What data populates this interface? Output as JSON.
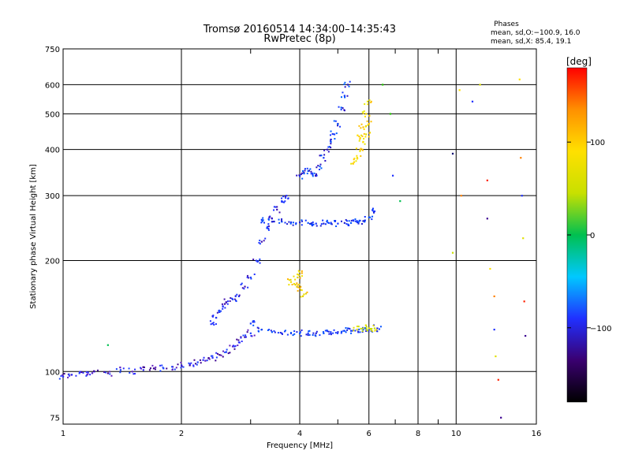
{
  "chart_data": {
    "type": "scatter",
    "title": "Tromsø 20160514 14:34:00–14:35:43",
    "subtitle": "RwPretec (8p)",
    "xlabel": "Frequency [MHz]",
    "ylabel": "Stationary phase Virtual Height [km]",
    "x_scale": "log",
    "y_scale": "log",
    "xlim": [
      1,
      16
    ],
    "ylim": [
      72,
      750
    ],
    "x_ticks": [
      1,
      2,
      4,
      6,
      8,
      10,
      16
    ],
    "y_ticks": [
      75,
      100,
      200,
      300,
      400,
      500,
      600,
      750
    ],
    "grid": true,
    "info": {
      "header": "Phases",
      "line1": "mean, sd,O:−100.9, 16.0",
      "line2": "mean, sd,X:  85.4, 19.1"
    },
    "colorbar": {
      "label": "[deg]",
      "range": [
        -180,
        180
      ],
      "ticks": [
        100,
        0,
        -100
      ],
      "colors": [
        "#000000",
        "#3a0070",
        "#2030ff",
        "#00c8ff",
        "#00c050",
        "#c8e000",
        "#ffe000",
        "#ff9000",
        "#ff0000"
      ]
    },
    "series": [
      {
        "trace": "low-E",
        "points": [
          [
            1.0,
            97
          ],
          [
            1.05,
            98
          ],
          [
            1.1,
            99
          ],
          [
            1.15,
            98
          ],
          [
            1.2,
            100
          ],
          [
            1.3,
            99
          ],
          [
            1.4,
            101
          ],
          [
            1.5,
            100
          ],
          [
            1.6,
            101
          ],
          [
            1.7,
            102
          ],
          [
            1.8,
            102
          ],
          [
            1.9,
            103
          ],
          [
            2.0,
            104
          ],
          [
            2.1,
            104
          ],
          [
            2.2,
            106
          ],
          [
            2.3,
            107
          ],
          [
            2.4,
            109
          ],
          [
            2.5,
            111
          ],
          [
            2.6,
            113
          ],
          [
            2.7,
            117
          ],
          [
            2.8,
            120
          ],
          [
            2.9,
            124
          ],
          [
            3.0,
            127
          ]
        ]
      },
      {
        "trace": "E-steep",
        "points": [
          [
            2.4,
            135
          ],
          [
            2.45,
            140
          ],
          [
            2.5,
            145
          ],
          [
            2.55,
            150
          ],
          [
            2.6,
            154
          ],
          [
            2.7,
            157
          ],
          [
            2.8,
            160
          ],
          [
            2.9,
            170
          ],
          [
            3.0,
            180
          ],
          [
            3.1,
            200
          ],
          [
            3.2,
            225
          ],
          [
            3.3,
            245
          ],
          [
            3.4,
            260
          ],
          [
            3.5,
            275
          ],
          [
            3.6,
            290
          ],
          [
            3.7,
            300
          ]
        ]
      },
      {
        "trace": "F-low",
        "points": [
          [
            3.0,
            135
          ],
          [
            3.2,
            130
          ],
          [
            3.4,
            128
          ],
          [
            3.6,
            127
          ],
          [
            3.8,
            127
          ],
          [
            4.0,
            127
          ],
          [
            4.2,
            127
          ],
          [
            4.4,
            127
          ],
          [
            4.6,
            127
          ],
          [
            4.8,
            127
          ],
          [
            5.0,
            128
          ],
          [
            5.2,
            129
          ],
          [
            5.4,
            129
          ],
          [
            5.6,
            130
          ],
          [
            5.8,
            130
          ],
          [
            6.0,
            130
          ],
          [
            6.3,
            131
          ]
        ]
      },
      {
        "trace": "F-low-yellow",
        "points": [
          [
            5.6,
            130
          ],
          [
            5.8,
            131
          ],
          [
            6.0,
            131
          ],
          [
            6.2,
            131
          ]
        ]
      },
      {
        "trace": "Es-yellow",
        "points": [
          [
            3.8,
            175
          ],
          [
            3.9,
            172
          ],
          [
            4.0,
            168
          ],
          [
            4.1,
            162
          ],
          [
            3.95,
            180
          ],
          [
            4.05,
            185
          ]
        ]
      },
      {
        "trace": "F-mid",
        "points": [
          [
            3.2,
            258
          ],
          [
            3.4,
            255
          ],
          [
            3.6,
            255
          ],
          [
            3.8,
            254
          ],
          [
            4.0,
            254
          ],
          [
            4.2,
            253
          ],
          [
            4.4,
            252
          ],
          [
            4.6,
            252
          ],
          [
            4.8,
            252
          ],
          [
            5.0,
            252
          ],
          [
            5.2,
            253
          ],
          [
            5.4,
            253
          ],
          [
            5.6,
            254
          ],
          [
            5.8,
            256
          ],
          [
            6.0,
            262
          ],
          [
            6.2,
            272
          ]
        ]
      },
      {
        "trace": "F2-trace",
        "points": [
          [
            4.0,
            340
          ],
          [
            4.1,
            345
          ],
          [
            4.2,
            350
          ],
          [
            4.3,
            345
          ],
          [
            4.4,
            340
          ],
          [
            4.5,
            360
          ],
          [
            4.6,
            380
          ],
          [
            4.7,
            400
          ],
          [
            4.8,
            420
          ],
          [
            4.9,
            440
          ],
          [
            5.0,
            470
          ],
          [
            5.1,
            520
          ],
          [
            5.2,
            560
          ],
          [
            5.3,
            600
          ]
        ]
      },
      {
        "trace": "F2-yellow",
        "points": [
          [
            5.5,
            370
          ],
          [
            5.6,
            380
          ],
          [
            5.7,
            400
          ],
          [
            5.8,
            420
          ],
          [
            5.9,
            440
          ],
          [
            6.0,
            470
          ],
          [
            5.9,
            500
          ],
          [
            5.95,
            540
          ],
          [
            5.8,
            460
          ],
          [
            5.7,
            430
          ]
        ]
      },
      {
        "trace": "scattered-right",
        "points": [
          [
            10.2,
            580
          ],
          [
            10.3,
            300
          ],
          [
            11.0,
            540
          ],
          [
            11.5,
            600
          ],
          [
            12.0,
            330
          ],
          [
            12.0,
            260
          ],
          [
            12.2,
            190
          ],
          [
            12.5,
            160
          ],
          [
            12.5,
            130
          ],
          [
            12.6,
            110
          ],
          [
            12.8,
            95
          ],
          [
            13.0,
            75
          ],
          [
            14.5,
            620
          ],
          [
            14.6,
            380
          ],
          [
            14.7,
            300
          ],
          [
            14.8,
            230
          ],
          [
            14.9,
            155
          ],
          [
            15.0,
            125
          ]
        ]
      },
      {
        "trace": "isolated",
        "points": [
          [
            1.3,
            118
          ],
          [
            6.8,
            500
          ],
          [
            6.9,
            340
          ],
          [
            9.8,
            390
          ],
          [
            9.8,
            210
          ],
          [
            7.2,
            290
          ],
          [
            6.5,
            600
          ]
        ]
      }
    ]
  }
}
